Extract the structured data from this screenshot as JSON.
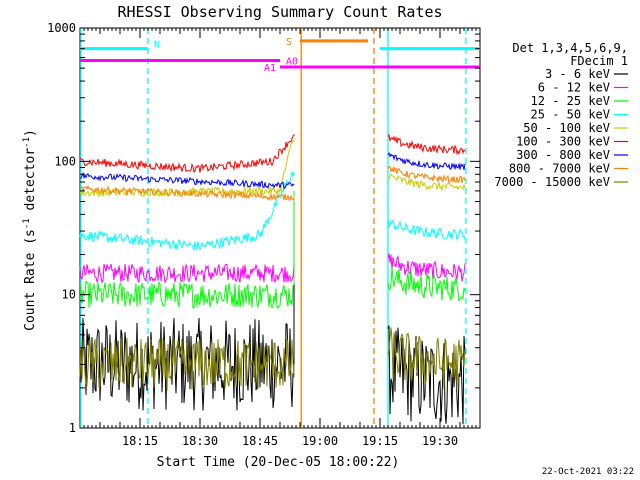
{
  "chart_data": {
    "type": "line",
    "title": "RHESSI Observing Summary Count Rates",
    "xlabel": "Start Time (20-Dec-05 18:00:22)",
    "ylabel": "Count Rate (s",
    "ylabel_sup": "-1",
    "ylabel_tail": " detector",
    "ylabel_tail_sup": "-1",
    "ylabel_close": ")",
    "yscale": "log",
    "ylim": [
      1,
      1000
    ],
    "xlim_minutes": [
      0,
      100
    ],
    "x_ticks": [
      "18:15",
      "18:30",
      "18:45",
      "19:00",
      "19:15",
      "19:30"
    ],
    "x_tick_minutes": [
      15,
      30,
      45,
      60,
      75,
      90
    ],
    "y_ticks": [
      "1",
      "10",
      "100",
      "1000"
    ],
    "y_tick_values": [
      1,
      10,
      100,
      1000
    ],
    "legend_title": [
      "Det 1,3,4,5,6,9,",
      "FDecim 1"
    ],
    "gaps_minutes": [
      [
        53.5,
        77
      ]
    ],
    "series": [
      {
        "name": "3 - 6 keV",
        "color": "#000000",
        "base": 3.0,
        "noise": 0.35,
        "trend": [
          [
            0,
            3.0
          ],
          [
            50,
            3.0
          ],
          [
            53,
            3.0
          ]
        ],
        "after": 2.2,
        "peak": 12
      },
      {
        "name": "6 - 12 keV",
        "color": "#ff00ff",
        "base": 14.5,
        "noise": 0.07,
        "trend": [
          [
            0,
            14.5
          ],
          [
            50,
            14.5
          ]
        ],
        "after": 14.5,
        "peak": 22
      },
      {
        "name": "12 - 25 keV",
        "color": "#00ff00",
        "base": 10,
        "noise": 0.1,
        "trend": [
          [
            0,
            10
          ],
          [
            50,
            10
          ]
        ],
        "after": 11,
        "peak": 60
      },
      {
        "name": "25 - 50 keV",
        "color": "#00ffff",
        "base": 28,
        "noise": 0.04,
        "trend": [
          [
            0,
            28
          ],
          [
            30,
            23
          ],
          [
            45,
            28
          ],
          [
            53,
            80
          ]
        ],
        "after": 28,
        "peak": 80
      },
      {
        "name": "50 - 100 keV",
        "color": "#cccc00",
        "base": 58,
        "noise": 0.03,
        "trend": [
          [
            0,
            58
          ],
          [
            50,
            60
          ],
          [
            53,
            140
          ]
        ],
        "after": 63,
        "peak": 140
      },
      {
        "name": "100 - 300 keV",
        "color": "#ff0000",
        "base": 100,
        "noise": 0.03,
        "trend": [
          [
            0,
            100
          ],
          [
            30,
            88
          ],
          [
            48,
            100
          ],
          [
            53,
            150
          ]
        ],
        "after": 120,
        "peak": 160
      },
      {
        "name": "300 - 800 keV",
        "color": "#0000ff",
        "base": 75,
        "noise": 0.025,
        "trend": [
          [
            0,
            78
          ],
          [
            50,
            66
          ]
        ],
        "after": 90,
        "peak": 66
      },
      {
        "name": "800 - 7000 keV",
        "color": "#ff8000",
        "base": 62,
        "noise": 0.025,
        "trend": [
          [
            0,
            62
          ],
          [
            50,
            54
          ]
        ],
        "after": 72,
        "peak": 54
      },
      {
        "name": "7000 - 15000 keV",
        "color": "#808000",
        "base": 3.0,
        "noise": 0.2,
        "trend": [
          [
            0,
            3.0
          ],
          [
            53,
            3.0
          ]
        ],
        "after": 3.0,
        "peak": 3.0
      }
    ],
    "annotations": [
      {
        "label": "N",
        "color": "#00ffff",
        "level": 700,
        "from": 0,
        "to": 17
      },
      {
        "label": "S",
        "color": "#ff8000",
        "level": 800,
        "from": 55,
        "to": 72
      },
      {
        "label": "A0",
        "color": "#ff00ff",
        "level": 570,
        "from": 0,
        "to": 50
      },
      {
        "label": "A1",
        "color": "#ff00ff",
        "level": 510,
        "from": 50,
        "to": 100
      }
    ],
    "night_bar": {
      "color": "#00ffff",
      "level": 700,
      "from": 75,
      "to": 100
    },
    "vlines": [
      {
        "minute": 0.2,
        "color": "#00ffff",
        "style": "solid"
      },
      {
        "minute": 17,
        "color": "#00ffff",
        "style": "dashed"
      },
      {
        "minute": 55.3,
        "color": "#ff8000",
        "style": "solid"
      },
      {
        "minute": 73.5,
        "color": "#ff8000",
        "style": "dashed"
      },
      {
        "minute": 77,
        "color": "#00ffff",
        "style": "solid"
      },
      {
        "minute": 96.5,
        "color": "#00ffff",
        "style": "dashed"
      }
    ]
  },
  "footer_timestamp": "22-Oct-2021 03:22"
}
